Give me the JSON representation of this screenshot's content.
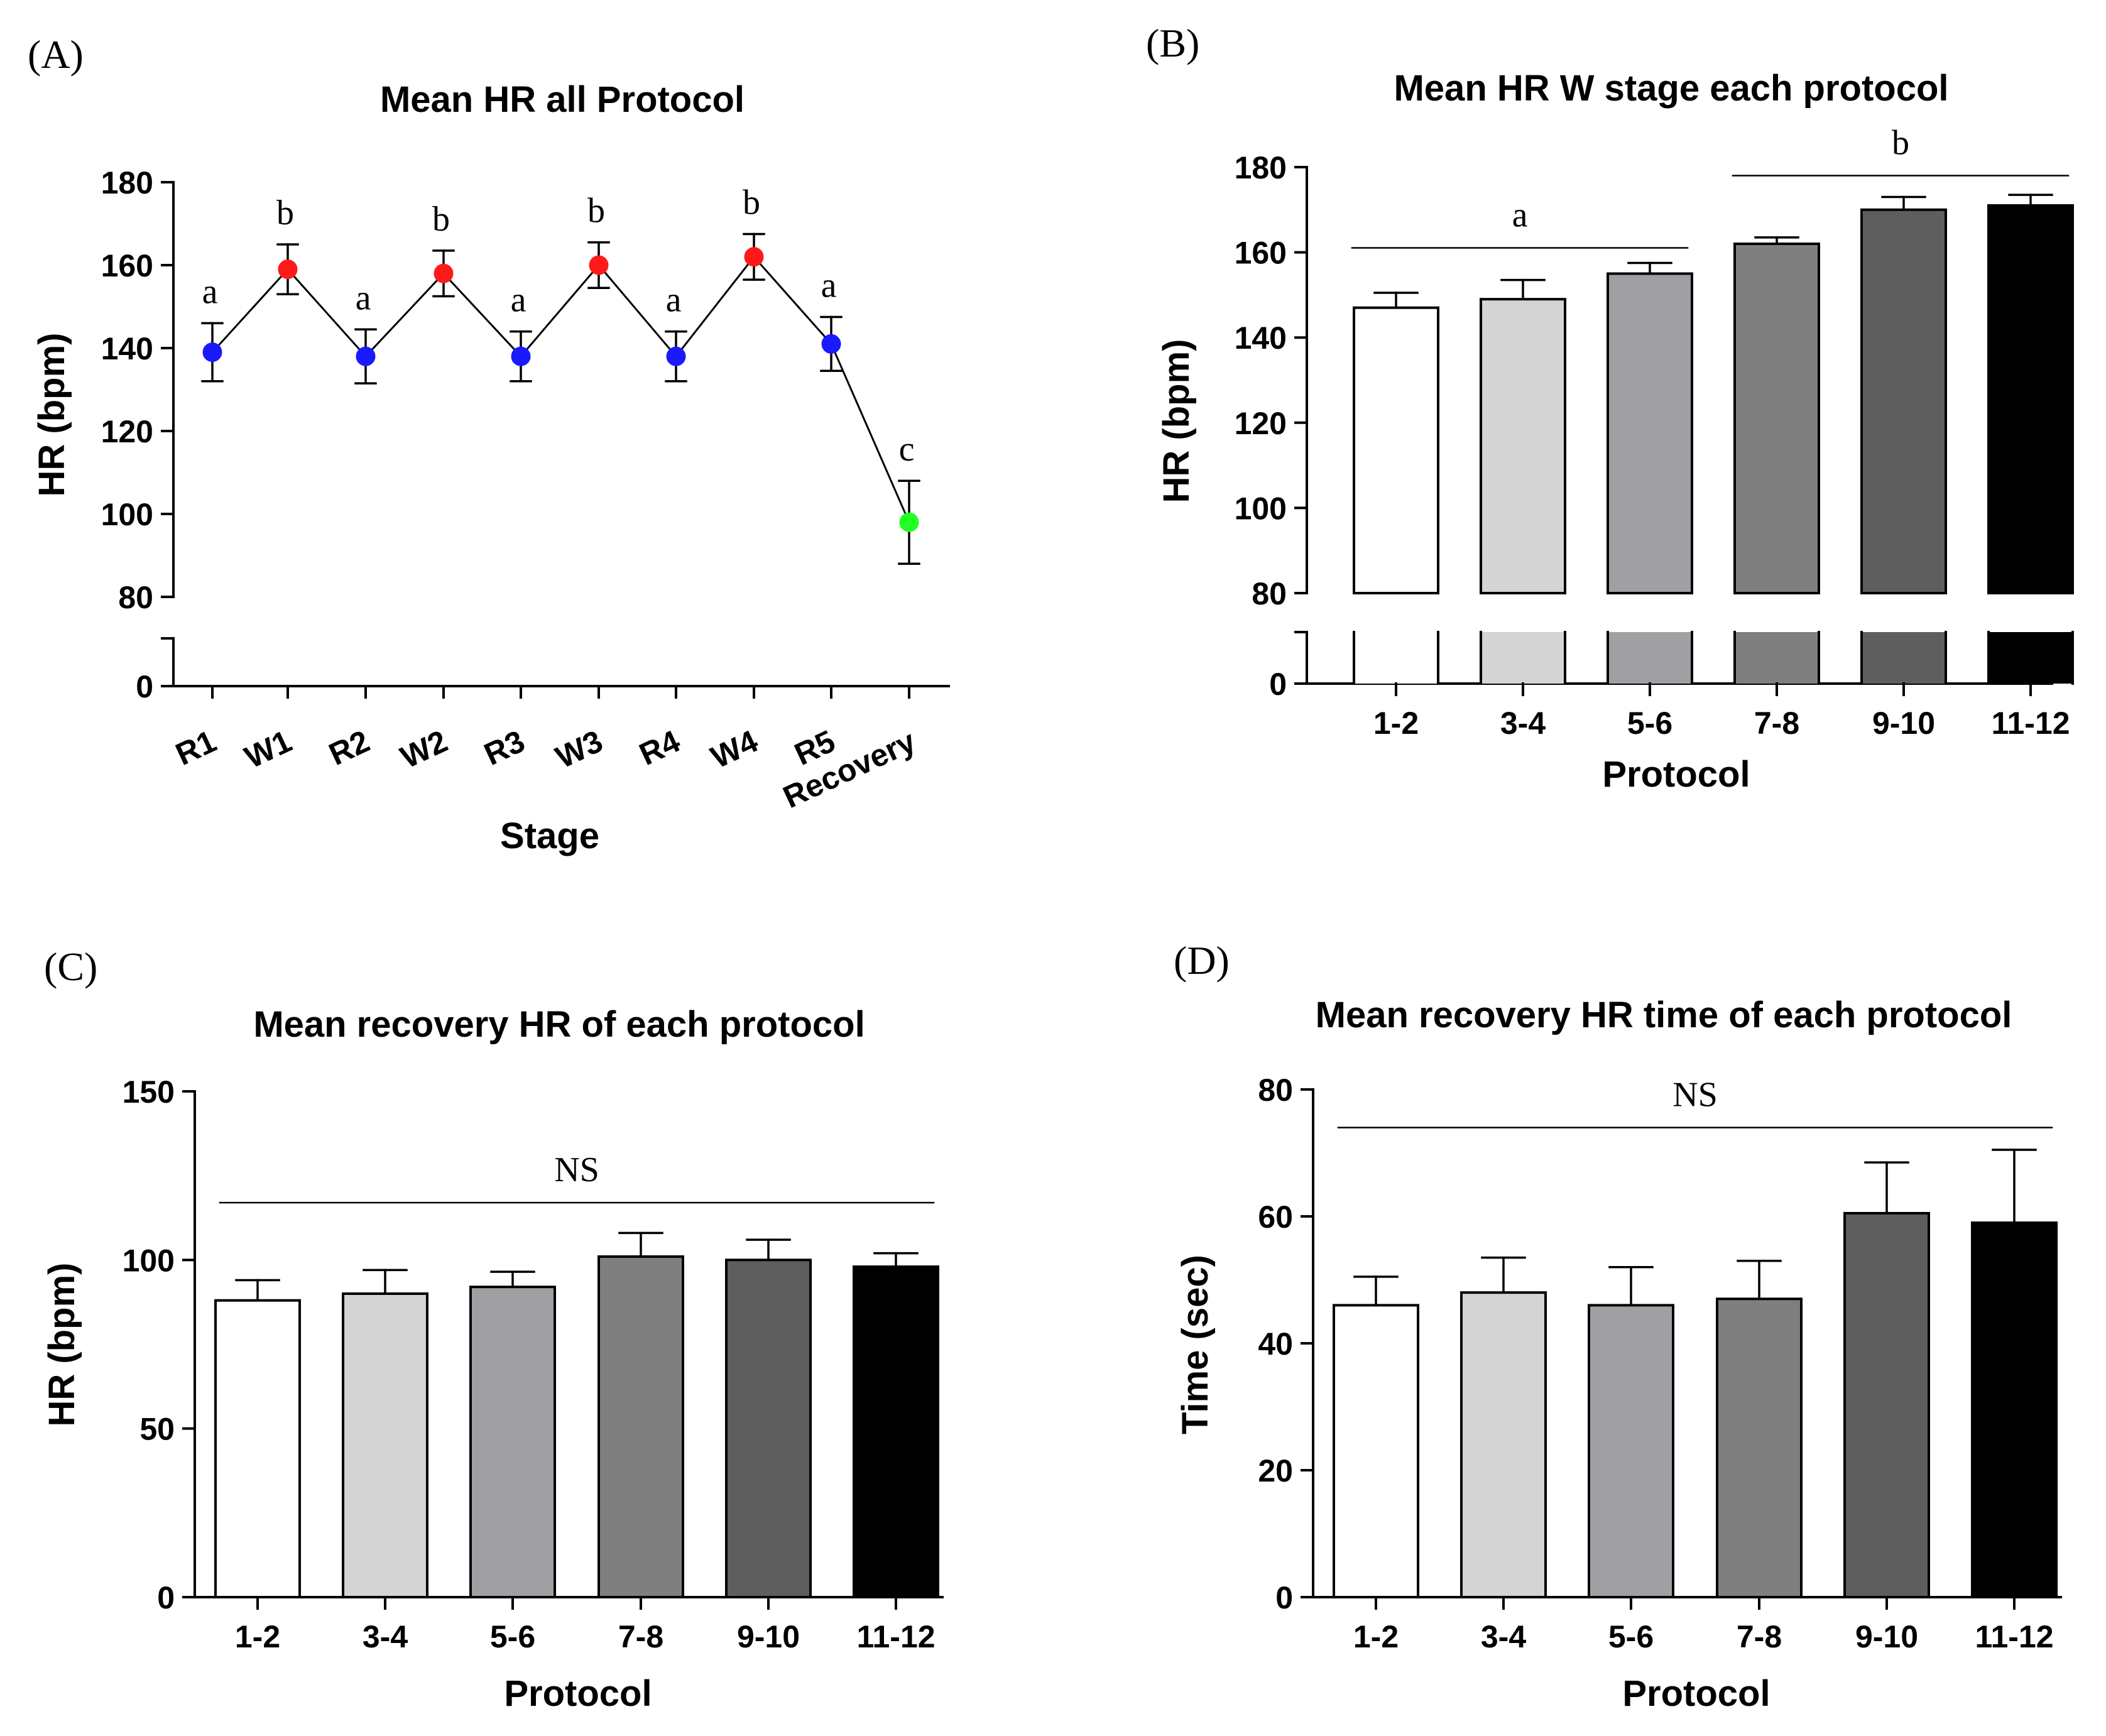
{
  "chart_data": [
    {
      "panel": "(A)",
      "type": "line",
      "title": "Mean HR all Protocol",
      "xlabel": "Stage",
      "ylabel": "HR (bpm)",
      "categories": [
        "R1",
        "W1",
        "R2",
        "W2",
        "R3",
        "W3",
        "R4",
        "W4",
        "R5",
        "Recovery"
      ],
      "values": [
        139,
        159,
        138,
        158,
        138,
        160,
        138,
        162,
        141,
        98
      ],
      "error": [
        7,
        6,
        6.5,
        5.5,
        6,
        5.5,
        6,
        5.5,
        6.5,
        10
      ],
      "letters": [
        "a",
        "b",
        "a",
        "b",
        "a",
        "b",
        "a",
        "b",
        "a",
        "c"
      ],
      "marker_colors": [
        "#1a1aff",
        "#ff1a1a",
        "#1a1aff",
        "#ff1a1a",
        "#1a1aff",
        "#ff1a1a",
        "#1a1aff",
        "#ff1a1a",
        "#1a1aff",
        "#22ff22"
      ],
      "yticks_upper": [
        100,
        120,
        140,
        160,
        180
      ],
      "yticks_lower": [
        0,
        80
      ],
      "ylim_upper": [
        80,
        180
      ],
      "ylim_lower": [
        0,
        80
      ]
    },
    {
      "panel": "(B)",
      "type": "bar",
      "title": "Mean HR W stage each protocol",
      "xlabel": "Protocol",
      "ylabel": "HR (bpm)",
      "categories": [
        "1-2",
        "3-4",
        "5-6",
        "7-8",
        "9-10",
        "11-12"
      ],
      "values": [
        147,
        149,
        155,
        162,
        170,
        171
      ],
      "error": [
        3.5,
        4.5,
        2.5,
        1.5,
        3,
        2.5
      ],
      "bar_colors": [
        "#ffffff",
        "#d4d4d4",
        "#a0a0a4",
        "#7f7f7f",
        "#5e5e5e",
        "#000000"
      ],
      "groups": [
        {
          "label": "a",
          "from": 0,
          "to": 2,
          "level": 164
        },
        {
          "label": "b",
          "from": 3,
          "to": 5,
          "level": 178
        }
      ],
      "yticks_upper": [
        100,
        120,
        140,
        160,
        180
      ],
      "yticks_lower": [
        0,
        80
      ],
      "ylim_upper": [
        80,
        180
      ],
      "ylim_lower": [
        0,
        80
      ]
    },
    {
      "panel": "(C)",
      "type": "bar",
      "title": "Mean recovery HR of each protocol",
      "xlabel": "Protocol",
      "ylabel": "HR (bpm)",
      "categories": [
        "1-2",
        "3-4",
        "5-6",
        "7-8",
        "9-10",
        "11-12"
      ],
      "values": [
        88,
        90,
        92,
        101,
        100,
        98
      ],
      "error": [
        6,
        7,
        4.5,
        7,
        6,
        4
      ],
      "bar_colors": [
        "#ffffff",
        "#d4d4d4",
        "#a0a0a4",
        "#7f7f7f",
        "#5e5e5e",
        "#000000"
      ],
      "groups": [
        {
          "label": "NS",
          "from": 0,
          "to": 5,
          "level": 117
        }
      ],
      "yticks": [
        0,
        50,
        100,
        150
      ],
      "ylim": [
        0,
        150
      ]
    },
    {
      "panel": "(D)",
      "type": "bar",
      "title": "Mean recovery HR time of each protocol",
      "xlabel": "Protocol",
      "ylabel": "Time (sec)",
      "categories": [
        "1-2",
        "3-4",
        "5-6",
        "7-8",
        "9-10",
        "11-12"
      ],
      "values": [
        46,
        48,
        46,
        47,
        60.5,
        59
      ],
      "error": [
        4.5,
        5.5,
        6,
        6,
        8,
        11.5
      ],
      "bar_colors": [
        "#ffffff",
        "#d4d4d4",
        "#a0a0a4",
        "#7f7f7f",
        "#5e5e5e",
        "#000000"
      ],
      "groups": [
        {
          "label": "NS",
          "from": 0,
          "to": 5,
          "level": 74
        }
      ],
      "yticks": [
        0,
        20,
        40,
        60,
        80
      ],
      "ylim": [
        0,
        80
      ]
    }
  ]
}
